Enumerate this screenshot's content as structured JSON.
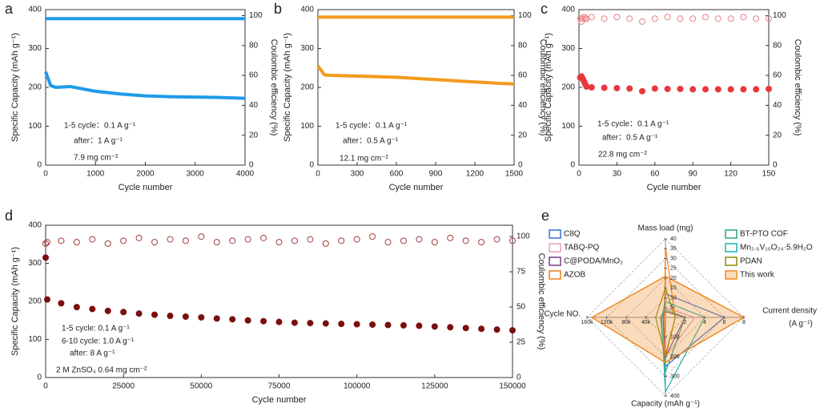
{
  "chart_data": [
    {
      "type": "line",
      "panel_label": "a",
      "x_label": "Cycle number",
      "y_label": "Specific Capacity (mAh g⁻¹)",
      "y2_label": "Coulombic efficiency (%)",
      "annotations": [
        "1-5 cycle：0.1 A g⁻¹",
        "after：1 A g⁻¹",
        "7.9 mg cm⁻²"
      ],
      "xlim": [
        0,
        4000
      ],
      "xticks": [
        0,
        1000,
        2000,
        3000,
        4000
      ],
      "ylim": [
        0,
        400
      ],
      "yticks": [
        0,
        100,
        200,
        300,
        400
      ],
      "y2lim": [
        0,
        104
      ],
      "y2ticks": [
        0,
        20,
        40,
        60,
        80,
        100
      ],
      "x": [
        0,
        100,
        200,
        500,
        1000,
        1500,
        2000,
        2500,
        3000,
        3500,
        4000
      ],
      "series": [
        {
          "color": "#1e9be8",
          "values": [
            240,
            205,
            200,
            202,
            190,
            183,
            178,
            176,
            175,
            174,
            172
          ]
        },
        {
          "color": "#1e9be8",
          "axis": "y2",
          "values": [
            98,
            98,
            98,
            98,
            98,
            98,
            98,
            98,
            98,
            98,
            98
          ]
        }
      ]
    },
    {
      "type": "line",
      "panel_label": "b",
      "x_label": "Cycle number",
      "y_label": "Specific Capacity (mAh g⁻¹)",
      "y2_label": "Coulombic efficiency (%)",
      "annotations": [
        "1-5 cycle：0.1 A g⁻¹",
        "after：0.5 A g⁻¹",
        "12.1 mg cm⁻²"
      ],
      "xlim": [
        0,
        1500
      ],
      "xticks": [
        0,
        300,
        600,
        900,
        1200,
        1500
      ],
      "ylim": [
        0,
        400
      ],
      "yticks": [
        0,
        100,
        200,
        300,
        400
      ],
      "y2lim": [
        0,
        104
      ],
      "y2ticks": [
        0,
        20,
        40,
        60,
        80,
        100
      ],
      "x": [
        0,
        50,
        100,
        200,
        300,
        400,
        500,
        600,
        700,
        800,
        900,
        1000,
        1100,
        1200,
        1300,
        1400,
        1500
      ],
      "series": [
        {
          "color": "#f39a1e",
          "values": [
            255,
            232,
            231,
            230,
            229,
            228,
            227,
            226,
            224,
            222,
            220,
            218,
            216,
            214,
            212,
            210,
            209
          ]
        },
        {
          "color": "#f39a1e",
          "axis": "y2",
          "values": [
            99,
            99,
            99,
            99,
            99,
            99,
            99,
            99,
            99,
            99,
            99,
            99,
            99,
            99,
            99,
            99,
            99
          ]
        }
      ]
    },
    {
      "type": "scatter",
      "panel_label": "c",
      "x_label": "Cycle number",
      "y_label": "Specific Capacity (mAh g⁻¹)",
      "y2_label": "Coulombic efficiency (%)",
      "annotations": [
        "1-5 cycle：0.1 A g⁻¹",
        "after：0.5 A g⁻¹",
        "22.8 mg cm⁻²"
      ],
      "xlim": [
        0,
        150
      ],
      "xticks": [
        0,
        30,
        60,
        90,
        120,
        150
      ],
      "ylim": [
        0,
        400
      ],
      "yticks": [
        0,
        100,
        200,
        300,
        400
      ],
      "y2lim": [
        0,
        104
      ],
      "y2ticks": [
        0,
        20,
        40,
        60,
        80,
        100
      ],
      "x": [
        1,
        2,
        3,
        4,
        5,
        6,
        10,
        20,
        30,
        40,
        50,
        60,
        70,
        80,
        90,
        100,
        110,
        120,
        130,
        140,
        150
      ],
      "series": [
        {
          "color": "#e8383d",
          "filled": true,
          "values": [
            225,
            228,
            222,
            215,
            208,
            202,
            200,
            199,
            198,
            197,
            190,
            197,
            196,
            196,
            195,
            195,
            195,
            195,
            195,
            195,
            196
          ]
        },
        {
          "color": "#ec7f82",
          "filled": false,
          "axis": "y2",
          "values": [
            98,
            96,
            98,
            99,
            98,
            98,
            99,
            98,
            99,
            98,
            96,
            98,
            99,
            98,
            98,
            99,
            98,
            98,
            99,
            98,
            98
          ]
        }
      ]
    },
    {
      "type": "scatter",
      "panel_label": "d",
      "x_label": "Cycle number",
      "y_label": "Specific Capacity (mAh g⁻¹)",
      "y2_label": "Coulombic efficiency (%)",
      "annotations": [
        "1-5  cycle: 0.1 A g⁻¹",
        "6-10 cycle: 1.0 A g⁻¹",
        "after: 8 A g⁻¹",
        "2 M ZnSO₄   0.64 mg cm⁻²"
      ],
      "xlim": [
        0,
        150000
      ],
      "xticks": [
        0,
        25000,
        50000,
        75000,
        100000,
        125000,
        150000
      ],
      "ylim": [
        0,
        400
      ],
      "yticks": [
        0,
        100,
        200,
        300,
        400
      ],
      "y2lim": [
        0,
        108
      ],
      "y2ticks": [
        0,
        25,
        50,
        75,
        100
      ],
      "x": [
        0,
        500,
        5000,
        10000,
        15000,
        20000,
        25000,
        30000,
        35000,
        40000,
        45000,
        50000,
        55000,
        60000,
        65000,
        70000,
        75000,
        80000,
        85000,
        90000,
        95000,
        100000,
        105000,
        110000,
        115000,
        120000,
        125000,
        130000,
        135000,
        140000,
        145000,
        150000
      ],
      "series": [
        {
          "color": "#7b0e0e",
          "filled": true,
          "values": [
            315,
            205,
            195,
            185,
            180,
            175,
            172,
            168,
            165,
            162,
            160,
            158,
            155,
            153,
            150,
            148,
            146,
            144,
            143,
            142,
            141,
            140,
            139,
            138,
            137,
            136,
            134,
            132,
            130,
            128,
            126,
            124
          ]
        },
        {
          "color": "#a83a3a",
          "filled": false,
          "axis": "y2",
          "values": [
            95,
            96,
            97,
            96,
            98,
            95,
            97,
            99,
            96,
            98,
            97,
            100,
            96,
            97,
            98,
            99,
            96,
            97,
            98,
            95,
            97,
            98,
            100,
            96,
            97,
            98,
            96,
            99,
            97,
            96,
            98,
            97
          ]
        }
      ]
    },
    {
      "type": "radar",
      "panel_label": "e",
      "axes": [
        {
          "name": "Mass load (mg)",
          "lim": [
            0,
            40
          ],
          "ticks": [
            5,
            10,
            15,
            20,
            25,
            30,
            35,
            40
          ]
        },
        {
          "name": "Current density",
          "unit": "(A g⁻¹)",
          "lim": [
            0,
            8
          ],
          "ticks": [
            2,
            4,
            6,
            8
          ]
        },
        {
          "name": "Capacity (mAh g⁻¹)",
          "lim": [
            0,
            400
          ],
          "ticks": [
            100,
            200,
            300,
            400
          ]
        },
        {
          "name": "Cycle NO.",
          "lim": [
            0,
            160000
          ],
          "ticks": [
            {
              "value": 40000,
              "label": "40k"
            },
            {
              "value": 80000,
              "label": "80k"
            },
            {
              "value": 120000,
              "label": "120k"
            },
            {
              "value": 160000,
              "label": "160k"
            }
          ]
        }
      ],
      "series": [
        {
          "name": "C8Q",
          "color": "#3a6fd8",
          "values": [
            12,
            6,
            250,
            5000
          ]
        },
        {
          "name": "TABQ-PQ",
          "color": "#e6a0c8",
          "values": [
            5,
            3,
            200,
            10000
          ]
        },
        {
          "name": "C@PODA/MnO₂",
          "color": "#7a3d8c",
          "values": [
            3,
            2,
            200,
            5000
          ]
        },
        {
          "name": "AZOB",
          "color": "#f07f1a",
          "values": [
            36,
            1,
            190,
            2000
          ]
        },
        {
          "name": "BT-PTO COF",
          "color": "#2aa876",
          "values": [
            4,
            2,
            280,
            10000
          ]
        },
        {
          "name": "Mn₂.₅V₁₀O₂₄·5.9H₂O",
          "color": "#19b0b0",
          "values": [
            8,
            4,
            380,
            8000
          ]
        },
        {
          "name": "PDAN",
          "color": "#8a8a00",
          "values": [
            15,
            1,
            200,
            20000
          ]
        },
        {
          "name": "This work",
          "color": "#f08a24",
          "filled": true,
          "values": [
            21,
            8,
            230,
            150000
          ]
        }
      ]
    }
  ]
}
